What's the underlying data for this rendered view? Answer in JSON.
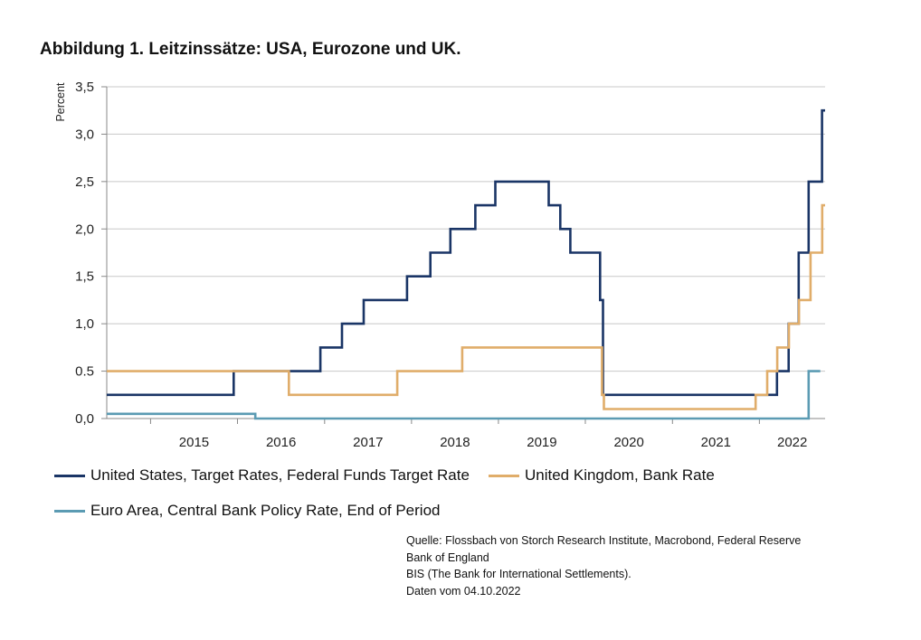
{
  "title": "Abbildung 1. Leitzinssätze: USA, Eurozone und UK.",
  "colors": {
    "us": "#1a3566",
    "uk": "#e0ad6a",
    "ea": "#5b9bb3",
    "grid": "#c8c8c8",
    "axis": "#888888"
  },
  "legend": {
    "us": "United States, Target Rates, Federal Funds Target Rate",
    "uk": "United Kingdom, Bank Rate",
    "ea": "Euro Area, Central Bank Policy Rate, End of Period"
  },
  "source": [
    "Quelle: Flossbach von Storch Research Institute, Macrobond, Federal Reserve",
    "Bank of England",
    "BIS (The Bank for International Settlements).",
    "Daten vom 04.10.2022"
  ],
  "chart_data": {
    "type": "line",
    "ylabel": "Percent",
    "xlabel": "",
    "ylim": [
      0,
      3.5
    ],
    "xlim": [
      "2014-07-01",
      "2022-10-04"
    ],
    "yticks": [
      "0,0",
      "0.5",
      "1,0",
      "1,5",
      "2,0",
      "2,5",
      "3,0",
      "3,5"
    ],
    "xticks": [
      "2015",
      "2016",
      "2017",
      "2018",
      "2019",
      "2020",
      "2021",
      "2022"
    ],
    "grid": true,
    "legend_position": "bottom",
    "series": [
      {
        "name": "United States, Target Rates, Federal Funds Target Rate",
        "key": "us",
        "step": true,
        "points": [
          [
            "2014-07-01",
            0.25
          ],
          [
            "2015-12-16",
            0.5
          ],
          [
            "2016-12-14",
            0.75
          ],
          [
            "2017-03-15",
            1.0
          ],
          [
            "2017-06-14",
            1.25
          ],
          [
            "2017-12-13",
            1.5
          ],
          [
            "2018-03-21",
            1.75
          ],
          [
            "2018-06-13",
            2.0
          ],
          [
            "2018-09-26",
            2.25
          ],
          [
            "2018-12-19",
            2.5
          ],
          [
            "2019-07-31",
            2.25
          ],
          [
            "2019-09-18",
            2.0
          ],
          [
            "2019-10-30",
            1.75
          ],
          [
            "2020-03-03",
            1.25
          ],
          [
            "2020-03-15",
            0.25
          ],
          [
            "2022-03-16",
            0.5
          ],
          [
            "2022-05-04",
            1.0
          ],
          [
            "2022-06-15",
            1.75
          ],
          [
            "2022-07-27",
            2.5
          ],
          [
            "2022-09-21",
            3.25
          ],
          [
            "2022-10-04",
            3.25
          ]
        ]
      },
      {
        "name": "United Kingdom, Bank Rate",
        "key": "uk",
        "step": true,
        "points": [
          [
            "2014-07-01",
            0.5
          ],
          [
            "2016-08-04",
            0.25
          ],
          [
            "2017-11-02",
            0.5
          ],
          [
            "2018-08-02",
            0.75
          ],
          [
            "2020-03-11",
            0.25
          ],
          [
            "2020-03-19",
            0.1
          ],
          [
            "2021-12-16",
            0.25
          ],
          [
            "2022-02-03",
            0.5
          ],
          [
            "2022-03-17",
            0.75
          ],
          [
            "2022-05-05",
            1.0
          ],
          [
            "2022-06-16",
            1.25
          ],
          [
            "2022-08-04",
            1.75
          ],
          [
            "2022-09-22",
            2.25
          ],
          [
            "2022-10-04",
            2.25
          ]
        ]
      },
      {
        "name": "Euro Area, Central Bank Policy Rate, End of Period",
        "key": "ea",
        "step": true,
        "points": [
          [
            "2014-07-01",
            0.05
          ],
          [
            "2016-03-16",
            0.0
          ],
          [
            "2022-07-27",
            0.5
          ],
          [
            "2022-09-14",
            0.5
          ]
        ]
      }
    ]
  }
}
